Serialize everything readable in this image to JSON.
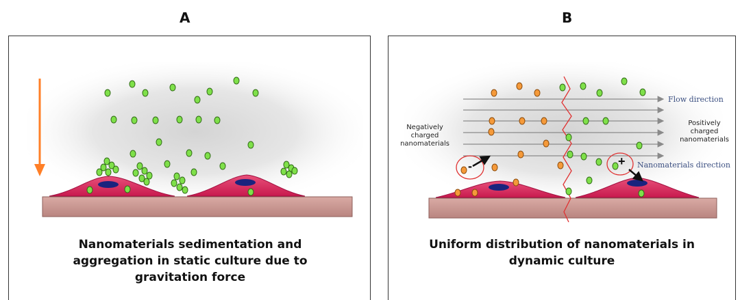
{
  "panel_a": {
    "letter": "A",
    "caption_line1": "Nanomaterials sedimentation and",
    "caption_line2": "aggregation in static culture due to",
    "caption_line3": "gravitation force"
  },
  "panel_b": {
    "letter": "B",
    "caption_line1": "Uniform distribution of nanomaterials in",
    "caption_line2": "dynamic culture",
    "flow_label": "Flow direction",
    "nano_dir_label": "Nanomaterials  direction",
    "neg_line1": "Negatively",
    "neg_line2": "charged",
    "neg_line3": "nanomaterials",
    "pos_line1": "Positively",
    "pos_line2": "charged",
    "pos_line3": "nanomaterials",
    "minus": "-",
    "plus": "+"
  },
  "colors": {
    "green_particle": "#7fe04a",
    "orange_particle": "#f59a3a",
    "cell": "#d8235a",
    "nucleus": "#1a237e",
    "substrate": "#cf9b95",
    "gravity_arrow": "#ff7f27",
    "divider": "#e03030"
  }
}
